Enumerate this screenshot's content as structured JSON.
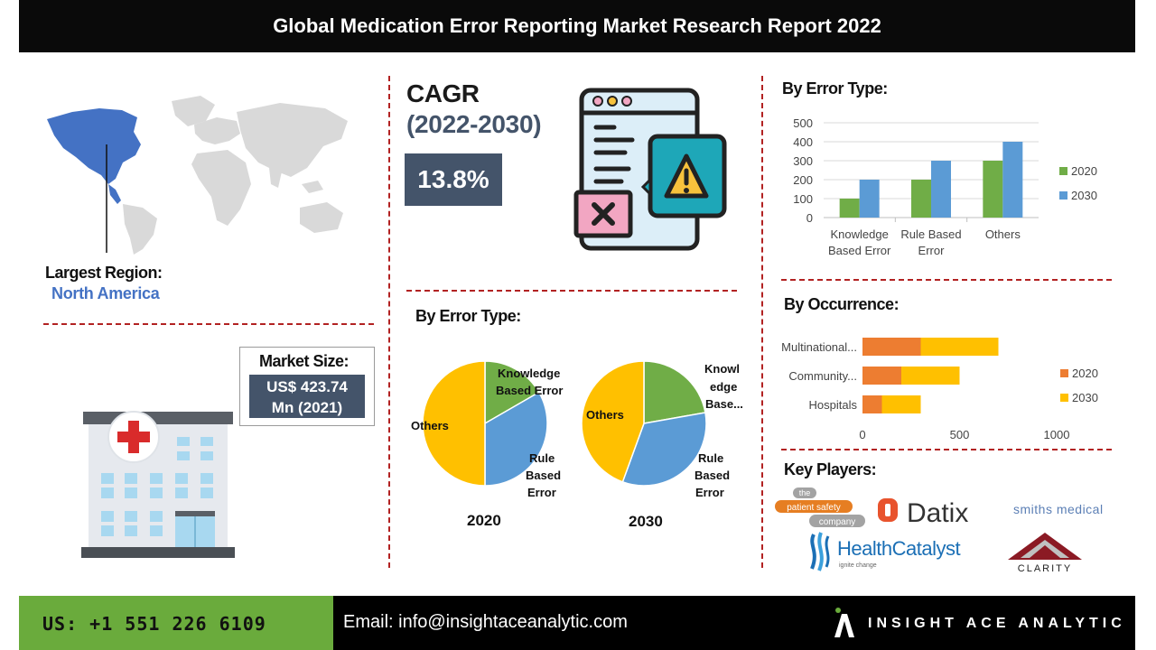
{
  "header": {
    "title": "Global Medication Error Reporting  Market Research Report 2022"
  },
  "region": {
    "label": "Largest Region:",
    "value": "North America",
    "highlight_color": "#4472c4"
  },
  "market_size": {
    "label": "Market Size:",
    "value_line1": "US$ 423.74",
    "value_line2": "Mn (2021)"
  },
  "cagr": {
    "label": "CAGR",
    "period": "(2022-2030)",
    "value": "13.8%"
  },
  "icons": {
    "map": "world-map",
    "hospital": "hospital-building-icon",
    "report": "report-warning-icon"
  },
  "pie_section": {
    "title": "By Error Type:"
  },
  "bar_section": {
    "title": "By Error Type:"
  },
  "occurrence_section": {
    "title": "By Occurrence:"
  },
  "key_players": {
    "title": "Key Players:",
    "logos": [
      "the patient safety company",
      "Datix",
      "smiths medical",
      "HealthCatalyst",
      "CLARITY"
    ],
    "psc": {
      "line1": "the",
      "line2": "patient safety",
      "line3": "company"
    },
    "healthcatalyst_tagline": "ignite change"
  },
  "footer": {
    "phone": "US: +1 551 226 6109",
    "email": "Email: info@insightaceanalytic.com",
    "company": "INSIGHT ACE ANALYTIC"
  },
  "colors": {
    "green": "#70ad47",
    "blue": "#5b9bd5",
    "orange": "#ed7d31",
    "yellow": "#ffc000",
    "slate": "#44546a"
  },
  "chart_data": [
    {
      "type": "pie",
      "title": "2020",
      "categories": [
        "Knowledge Based Error",
        "Rule Based Error",
        "Others"
      ],
      "values": [
        100,
        200,
        300
      ],
      "colors": [
        "#70ad47",
        "#5b9bd5",
        "#ffc000"
      ]
    },
    {
      "type": "pie",
      "title": "2030",
      "categories": [
        "Knowl edge Base...",
        "Rule Based Error",
        "Others"
      ],
      "values": [
        200,
        300,
        400
      ],
      "colors": [
        "#70ad47",
        "#5b9bd5",
        "#ffc000"
      ]
    },
    {
      "type": "bar",
      "categories": [
        "Knowledge Based Error",
        "Rule Based Error",
        "Others"
      ],
      "category_label_lines": [
        [
          "Knowledge",
          "Based Error"
        ],
        [
          "Rule Based",
          "Error"
        ],
        [
          "Others"
        ]
      ],
      "series": [
        {
          "name": "2020",
          "values": [
            100,
            200,
            300
          ],
          "color": "#70ad47"
        },
        {
          "name": "2030",
          "values": [
            200,
            300,
            400
          ],
          "color": "#5b9bd5"
        }
      ],
      "ylim": [
        0,
        500
      ],
      "yticks": [
        0,
        100,
        200,
        300,
        400,
        500
      ],
      "legend": "right"
    },
    {
      "type": "bar",
      "orientation": "horizontal",
      "stacked": true,
      "categories": [
        "Multinational...",
        "Community...",
        "Hospitals"
      ],
      "series": [
        {
          "name": "2020",
          "values": [
            300,
            200,
            100
          ],
          "color": "#ed7d31"
        },
        {
          "name": "2030",
          "values": [
            400,
            300,
            200
          ],
          "color": "#ffc000"
        }
      ],
      "xlim": [
        0,
        1000
      ],
      "xticks": [
        0,
        500,
        1000
      ],
      "legend": "right"
    }
  ]
}
